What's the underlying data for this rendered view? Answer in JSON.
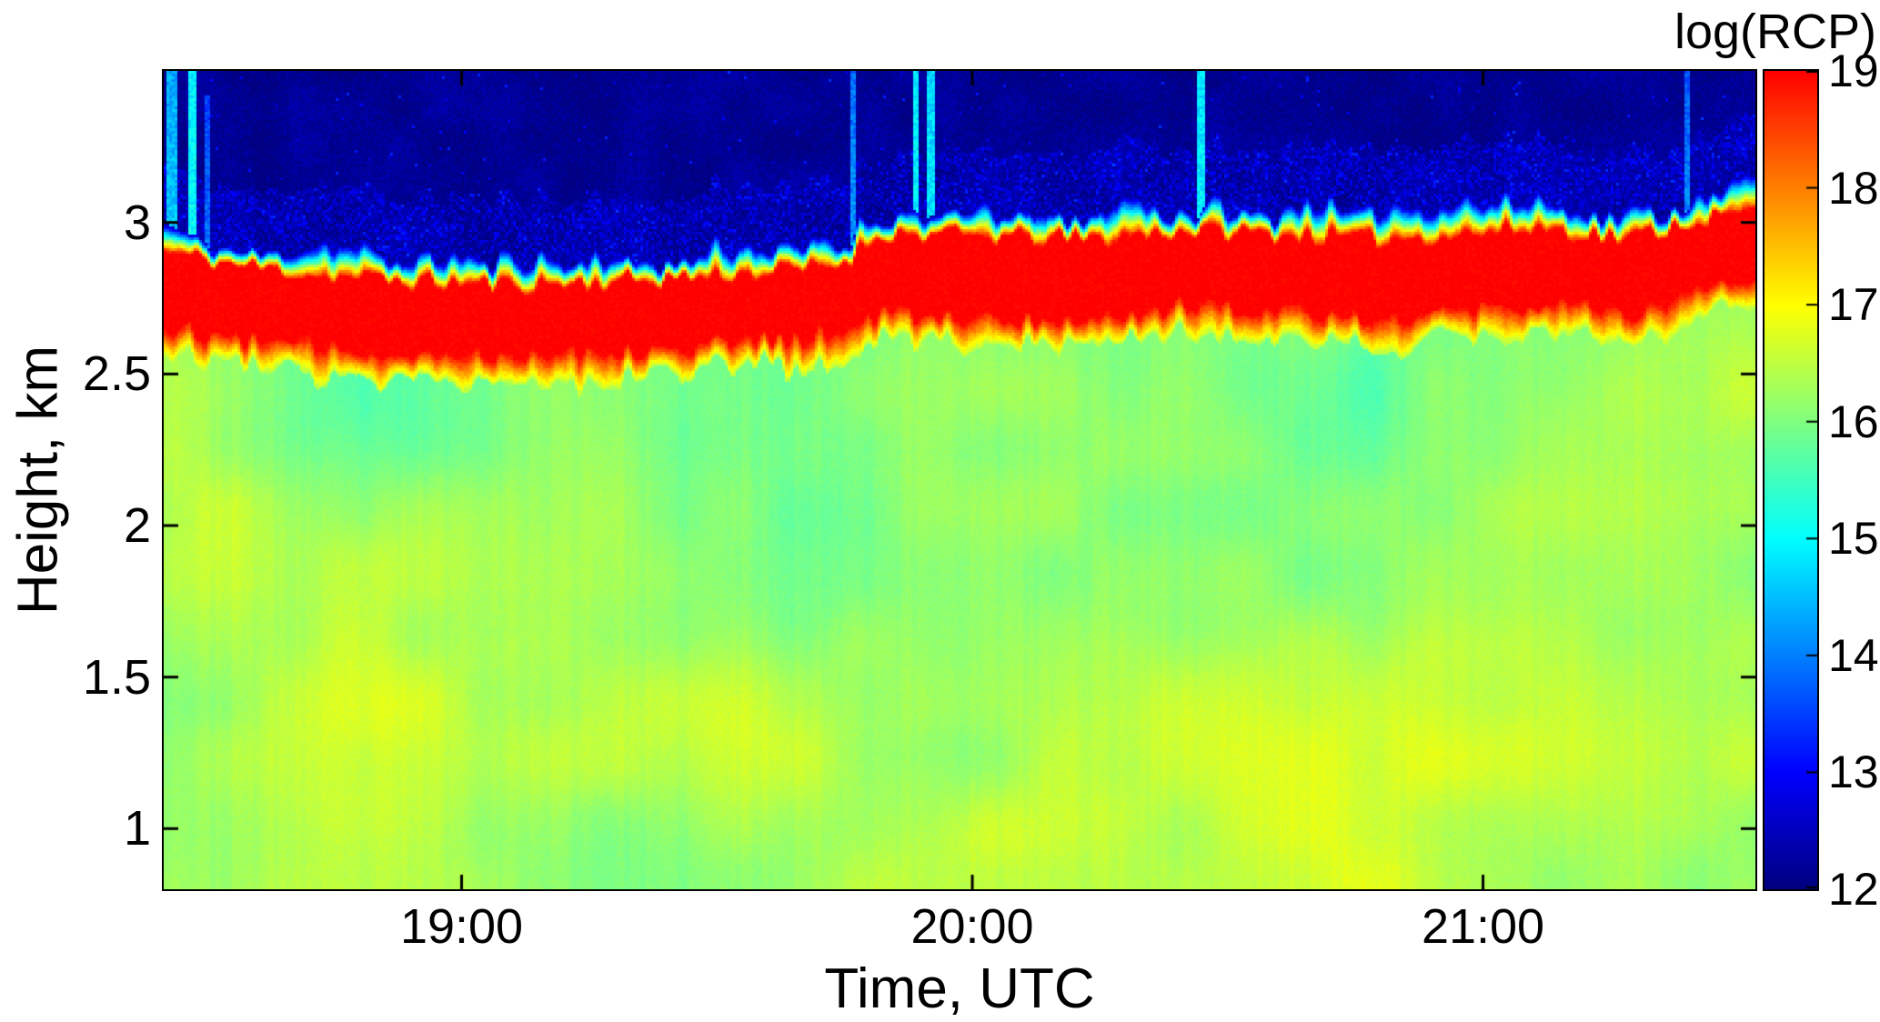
{
  "chart_data": {
    "type": "heatmap",
    "title": "",
    "xlabel": "Time, UTC",
    "ylabel": "Height, km",
    "x_start_minutes": 1105,
    "x_end_minutes": 1292,
    "y_domain_km": [
      0.8,
      3.5
    ],
    "value_domain": [
      12,
      19
    ],
    "grid": false,
    "xticks": [
      {
        "label": "19:00",
        "minutes": 1140
      },
      {
        "label": "20:00",
        "minutes": 1200
      },
      {
        "label": "21:00",
        "minutes": 1260
      }
    ],
    "yticks": [
      {
        "label": "3",
        "km": 3
      },
      {
        "label": "2.5",
        "km": 2.5
      },
      {
        "label": "2",
        "km": 2
      },
      {
        "label": "1.5",
        "km": 1.5
      },
      {
        "label": "1",
        "km": 1
      }
    ],
    "colorbar": {
      "title": "log(RCP)",
      "range": [
        12,
        19
      ],
      "ticks": [
        19,
        18,
        17,
        16,
        15,
        14,
        13,
        12
      ],
      "colormap": "jet"
    },
    "field": {
      "description": "Radar time-height cross-section of log(RCP): boundary-layer aerosol (~16-17, green/yellow) below a strong cloud layer (~19, red) at 2.6-3.0 km that rises slowly with time; weak background (~12, dark blue) above the cloud; thin vertical cyan streaks are transient echo/noise spikes.",
      "cloud_layer": {
        "u": [
          0.0,
          0.04,
          0.1,
          0.16,
          0.22,
          0.28,
          0.34,
          0.4,
          0.425,
          0.45,
          0.52,
          0.58,
          0.64,
          0.7,
          0.76,
          0.82,
          0.87,
          0.92,
          0.96,
          1.0
        ],
        "top_km": [
          2.9,
          2.86,
          2.82,
          2.8,
          2.79,
          2.8,
          2.82,
          2.84,
          2.86,
          2.96,
          2.95,
          2.94,
          2.97,
          2.96,
          2.94,
          2.96,
          2.98,
          2.94,
          3.0,
          3.03
        ],
        "base_km": [
          2.66,
          2.62,
          2.59,
          2.57,
          2.57,
          2.58,
          2.6,
          2.62,
          2.64,
          2.7,
          2.69,
          2.68,
          2.73,
          2.72,
          2.69,
          2.71,
          2.74,
          2.7,
          2.77,
          2.81
        ],
        "peak_value": 19,
        "edge_transition_km": 0.09
      },
      "background_below_value": 16.22,
      "background_above_value": 12.15,
      "streaks": [
        {
          "u": 0.004,
          "width": 0.006,
          "value": 14.6,
          "top_km": 3.5,
          "fade": 0.5
        },
        {
          "u": 0.017,
          "width": 0.006,
          "value": 15.0,
          "top_km": 3.5,
          "fade": 0.15
        },
        {
          "u": 0.027,
          "width": 0.004,
          "value": 13.9,
          "top_km": 3.42,
          "fade": 0.8
        },
        {
          "u": 0.433,
          "width": 0.0035,
          "value": 14.2,
          "top_km": 3.5,
          "fade": 0.55
        },
        {
          "u": 0.472,
          "width": 0.0035,
          "value": 14.9,
          "top_km": 3.5,
          "fade": 0.2
        },
        {
          "u": 0.482,
          "width": 0.005,
          "value": 14.8,
          "top_km": 3.5,
          "fade": 0.25
        },
        {
          "u": 0.652,
          "width": 0.0045,
          "value": 14.9,
          "top_km": 3.5,
          "fade": 0.2
        },
        {
          "u": 0.958,
          "width": 0.0035,
          "value": 14.1,
          "top_km": 3.5,
          "fade": 0.75
        }
      ]
    }
  }
}
